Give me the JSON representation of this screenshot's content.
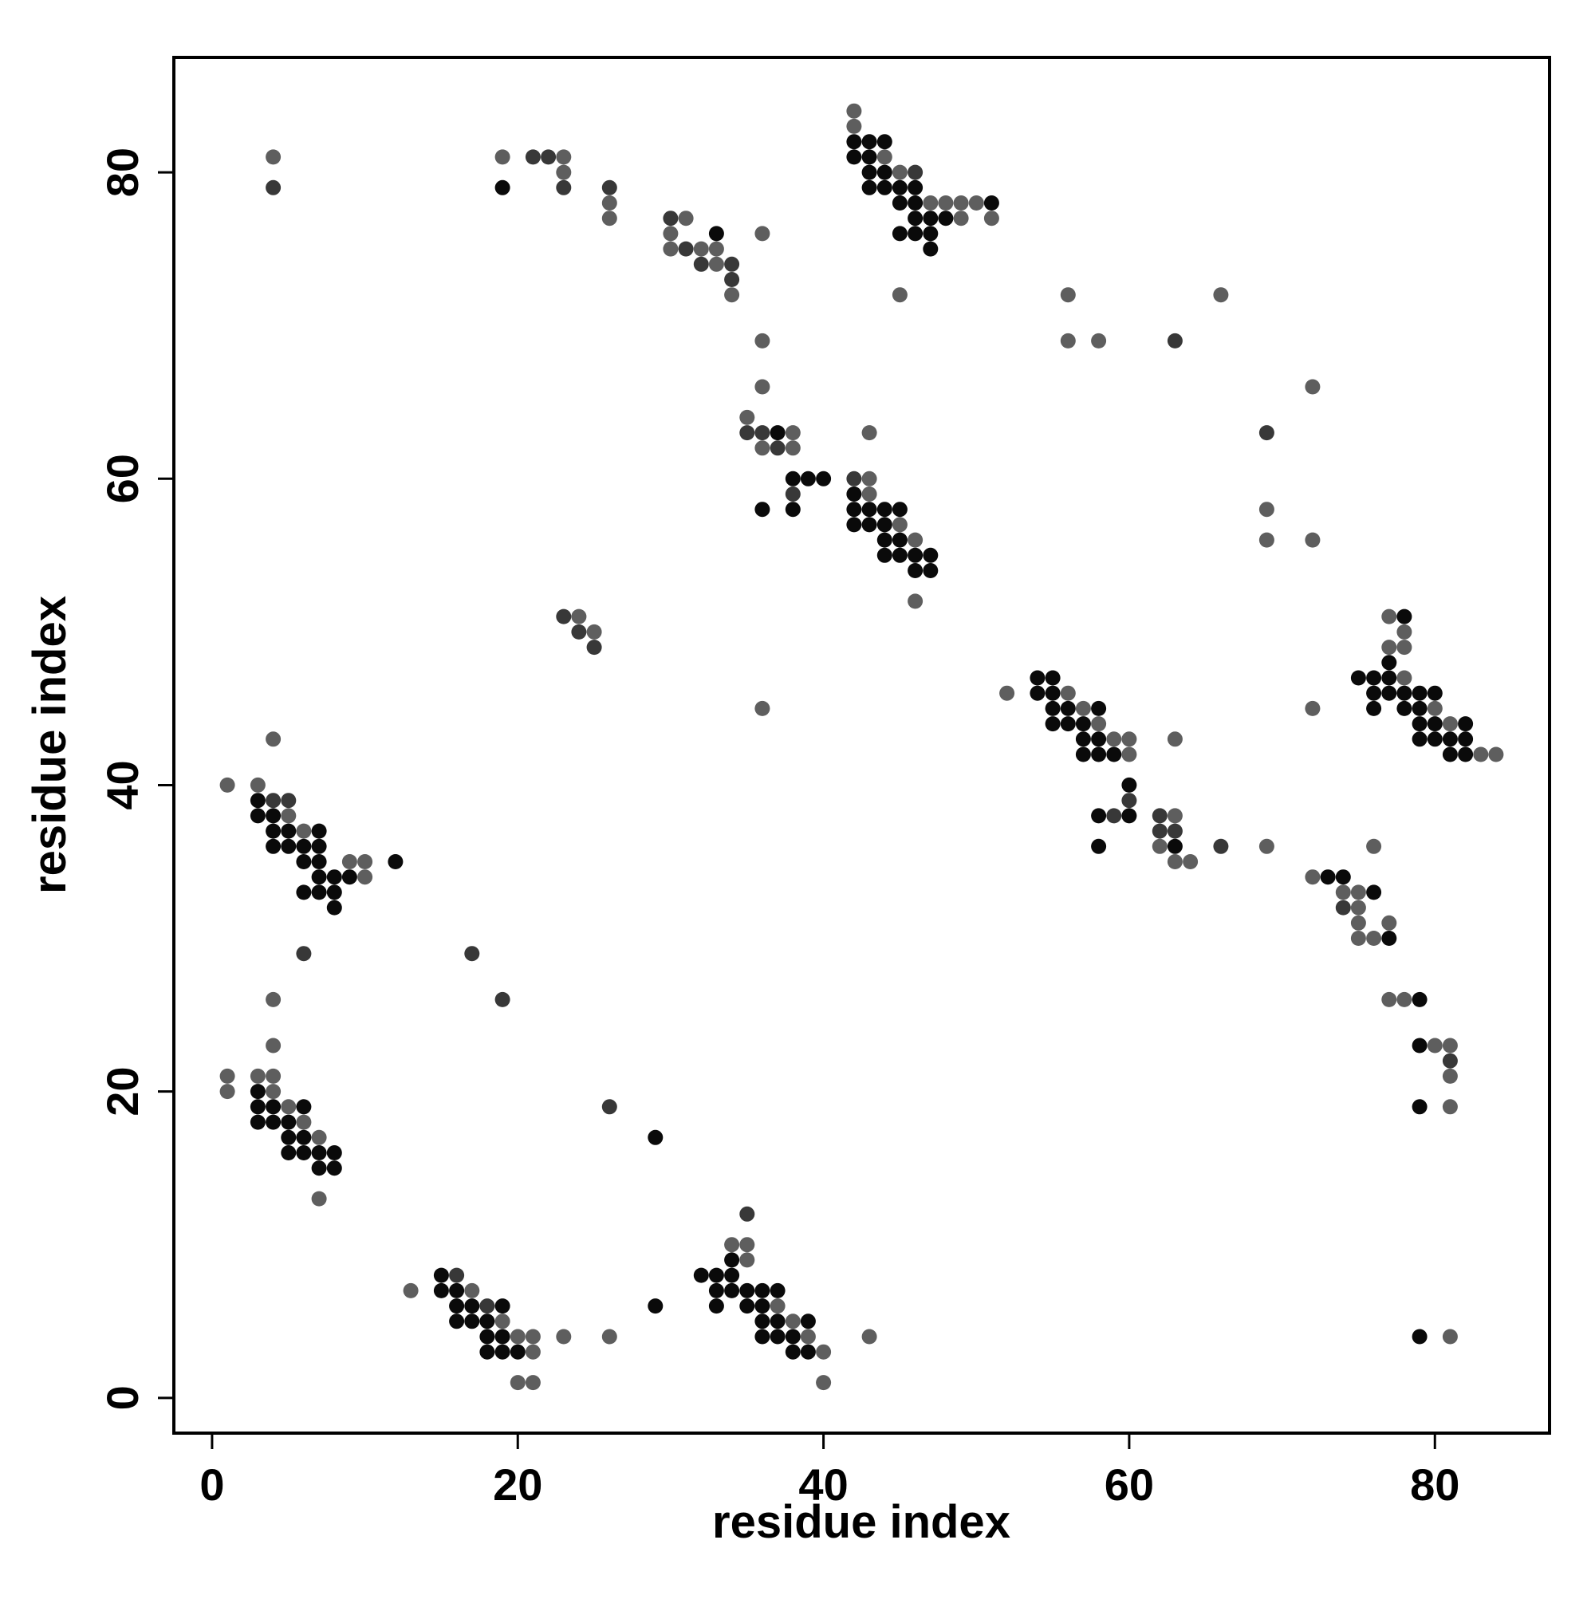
{
  "chart_data": {
    "type": "scatter",
    "title": "",
    "xlabel": "residue index",
    "ylabel": "residue index",
    "xlim": [
      -2.5,
      87.5
    ],
    "ylim": [
      -2.3,
      87.5
    ],
    "xticks": [
      0,
      20,
      40,
      60,
      80
    ],
    "yticks": [
      0,
      20,
      40,
      60,
      80
    ],
    "grid": false,
    "color_levels": {
      "1": "#0a0a0a",
      "2": "#383838",
      "3": "#5e5e5e"
    },
    "points": [
      [
        4,
        81,
        3
      ],
      [
        4,
        79,
        2
      ],
      [
        19,
        81,
        3
      ],
      [
        19,
        79,
        1
      ],
      [
        21,
        81,
        2
      ],
      [
        22,
        81,
        2
      ],
      [
        23,
        81,
        3
      ],
      [
        23,
        80,
        3
      ],
      [
        23,
        79,
        2
      ],
      [
        26,
        79,
        2
      ],
      [
        26,
        78,
        3
      ],
      [
        26,
        77,
        3
      ],
      [
        30,
        77,
        2
      ],
      [
        30,
        76,
        3
      ],
      [
        30,
        75,
        3
      ],
      [
        31,
        77,
        3
      ],
      [
        31,
        75,
        2
      ],
      [
        32,
        75,
        3
      ],
      [
        32,
        74,
        2
      ],
      [
        33,
        76,
        1
      ],
      [
        33,
        75,
        3
      ],
      [
        33,
        74,
        3
      ],
      [
        34,
        74,
        2
      ],
      [
        34,
        73,
        2
      ],
      [
        34,
        72,
        3
      ],
      [
        36,
        76,
        3
      ],
      [
        36,
        69,
        3
      ],
      [
        36,
        66,
        3
      ],
      [
        42,
        84,
        3
      ],
      [
        42,
        83,
        3
      ],
      [
        42,
        82,
        1
      ],
      [
        42,
        81,
        1
      ],
      [
        43,
        82,
        1
      ],
      [
        43,
        81,
        1
      ],
      [
        43,
        80,
        1
      ],
      [
        43,
        79,
        1
      ],
      [
        44,
        82,
        1
      ],
      [
        44,
        81,
        3
      ],
      [
        44,
        80,
        1
      ],
      [
        44,
        79,
        1
      ],
      [
        45,
        80,
        3
      ],
      [
        45,
        79,
        1
      ],
      [
        45,
        78,
        1
      ],
      [
        45,
        76,
        1
      ],
      [
        46,
        80,
        2
      ],
      [
        46,
        79,
        1
      ],
      [
        46,
        78,
        1
      ],
      [
        46,
        77,
        1
      ],
      [
        46,
        76,
        1
      ],
      [
        47,
        78,
        3
      ],
      [
        47,
        77,
        1
      ],
      [
        47,
        76,
        1
      ],
      [
        47,
        75,
        1
      ],
      [
        48,
        78,
        3
      ],
      [
        48,
        77,
        1
      ],
      [
        49,
        78,
        3
      ],
      [
        49,
        77,
        3
      ],
      [
        50,
        78,
        3
      ],
      [
        51,
        78,
        1
      ],
      [
        51,
        77,
        3
      ],
      [
        45,
        72,
        3
      ],
      [
        56,
        72,
        3
      ],
      [
        56,
        69,
        3
      ],
      [
        58,
        69,
        3
      ],
      [
        63,
        69,
        2
      ],
      [
        66,
        72,
        3
      ],
      [
        35,
        64,
        3
      ],
      [
        35,
        63,
        2
      ],
      [
        36,
        63,
        2
      ],
      [
        36,
        62,
        3
      ],
      [
        37,
        63,
        1
      ],
      [
        37,
        62,
        2
      ],
      [
        38,
        63,
        3
      ],
      [
        38,
        62,
        3
      ],
      [
        38,
        60,
        1
      ],
      [
        38,
        59,
        2
      ],
      [
        38,
        58,
        1
      ],
      [
        39,
        60,
        1
      ],
      [
        40,
        60,
        1
      ],
      [
        36,
        58,
        1
      ],
      [
        42,
        60,
        2
      ],
      [
        42,
        59,
        1
      ],
      [
        42,
        58,
        1
      ],
      [
        42,
        57,
        1
      ],
      [
        43,
        63,
        3
      ],
      [
        43,
        60,
        3
      ],
      [
        43,
        59,
        3
      ],
      [
        43,
        58,
        1
      ],
      [
        43,
        57,
        1
      ],
      [
        44,
        58,
        1
      ],
      [
        44,
        57,
        1
      ],
      [
        44,
        56,
        1
      ],
      [
        44,
        55,
        1
      ],
      [
        45,
        58,
        1
      ],
      [
        45,
        57,
        3
      ],
      [
        45,
        56,
        1
      ],
      [
        45,
        55,
        1
      ],
      [
        46,
        56,
        3
      ],
      [
        46,
        55,
        1
      ],
      [
        46,
        54,
        1
      ],
      [
        46,
        52,
        3
      ],
      [
        47,
        55,
        1
      ],
      [
        47,
        54,
        1
      ],
      [
        69,
        63,
        2
      ],
      [
        69,
        58,
        3
      ],
      [
        69,
        56,
        3
      ],
      [
        72,
        66,
        3
      ],
      [
        72,
        56,
        3
      ],
      [
        23,
        51,
        2
      ],
      [
        24,
        51,
        3
      ],
      [
        24,
        50,
        2
      ],
      [
        25,
        50,
        3
      ],
      [
        25,
        49,
        2
      ],
      [
        36,
        45,
        3
      ],
      [
        52,
        46,
        3
      ],
      [
        54,
        47,
        1
      ],
      [
        54,
        46,
        1
      ],
      [
        55,
        47,
        1
      ],
      [
        55,
        46,
        1
      ],
      [
        55,
        45,
        1
      ],
      [
        55,
        44,
        1
      ],
      [
        56,
        46,
        3
      ],
      [
        56,
        45,
        1
      ],
      [
        56,
        44,
        1
      ],
      [
        57,
        45,
        3
      ],
      [
        57,
        44,
        1
      ],
      [
        57,
        43,
        1
      ],
      [
        57,
        42,
        1
      ],
      [
        58,
        45,
        1
      ],
      [
        58,
        44,
        3
      ],
      [
        58,
        43,
        1
      ],
      [
        58,
        42,
        1
      ],
      [
        59,
        43,
        3
      ],
      [
        59,
        42,
        1
      ],
      [
        60,
        43,
        3
      ],
      [
        60,
        42,
        3
      ],
      [
        60,
        40,
        1
      ],
      [
        60,
        39,
        2
      ],
      [
        60,
        38,
        1
      ],
      [
        59,
        38,
        2
      ],
      [
        58,
        38,
        1
      ],
      [
        58,
        36,
        1
      ],
      [
        62,
        38,
        2
      ],
      [
        62,
        37,
        2
      ],
      [
        62,
        36,
        3
      ],
      [
        63,
        43,
        3
      ],
      [
        63,
        38,
        3
      ],
      [
        63,
        37,
        2
      ],
      [
        63,
        36,
        1
      ],
      [
        63,
        35,
        3
      ],
      [
        64,
        35,
        3
      ],
      [
        66,
        36,
        2
      ],
      [
        69,
        36,
        3
      ],
      [
        72,
        45,
        3
      ],
      [
        75,
        47,
        1
      ],
      [
        76,
        47,
        1
      ],
      [
        76,
        46,
        1
      ],
      [
        76,
        45,
        1
      ],
      [
        77,
        51,
        3
      ],
      [
        77,
        49,
        3
      ],
      [
        77,
        48,
        1
      ],
      [
        77,
        47,
        1
      ],
      [
        77,
        46,
        1
      ],
      [
        78,
        51,
        1
      ],
      [
        78,
        50,
        3
      ],
      [
        78,
        49,
        3
      ],
      [
        78,
        47,
        3
      ],
      [
        78,
        46,
        1
      ],
      [
        78,
        45,
        1
      ],
      [
        79,
        46,
        1
      ],
      [
        79,
        45,
        1
      ],
      [
        79,
        44,
        1
      ],
      [
        79,
        43,
        1
      ],
      [
        80,
        46,
        1
      ],
      [
        80,
        45,
        3
      ],
      [
        80,
        44,
        1
      ],
      [
        80,
        43,
        1
      ],
      [
        81,
        44,
        3
      ],
      [
        81,
        43,
        1
      ],
      [
        81,
        42,
        1
      ],
      [
        82,
        44,
        1
      ],
      [
        82,
        43,
        1
      ],
      [
        82,
        42,
        1
      ],
      [
        83,
        42,
        3
      ],
      [
        84,
        42,
        3
      ],
      [
        72,
        34,
        3
      ],
      [
        73,
        34,
        1
      ],
      [
        74,
        34,
        1
      ],
      [
        74,
        33,
        3
      ],
      [
        74,
        32,
        2
      ],
      [
        75,
        33,
        3
      ],
      [
        75,
        32,
        3
      ],
      [
        75,
        31,
        3
      ],
      [
        75,
        30,
        3
      ],
      [
        76,
        36,
        3
      ],
      [
        76,
        33,
        1
      ],
      [
        76,
        30,
        3
      ],
      [
        77,
        31,
        3
      ],
      [
        77,
        30,
        1
      ],
      [
        77,
        26,
        3
      ],
      [
        78,
        26,
        3
      ],
      [
        79,
        26,
        1
      ],
      [
        79,
        23,
        1
      ],
      [
        80,
        23,
        3
      ],
      [
        81,
        23,
        3
      ],
      [
        81,
        22,
        2
      ],
      [
        81,
        21,
        3
      ],
      [
        79,
        19,
        1
      ],
      [
        81,
        19,
        3
      ],
      [
        79,
        4,
        1
      ],
      [
        81,
        4,
        3
      ],
      [
        1,
        40,
        3
      ],
      [
        3,
        40,
        3
      ],
      [
        3,
        39,
        1
      ],
      [
        3,
        38,
        1
      ],
      [
        4,
        43,
        3
      ],
      [
        4,
        39,
        2
      ],
      [
        4,
        38,
        1
      ],
      [
        4,
        37,
        1
      ],
      [
        4,
        36,
        1
      ],
      [
        5,
        39,
        2
      ],
      [
        5,
        38,
        3
      ],
      [
        5,
        37,
        1
      ],
      [
        5,
        36,
        1
      ],
      [
        6,
        37,
        3
      ],
      [
        6,
        36,
        1
      ],
      [
        6,
        35,
        1
      ],
      [
        6,
        33,
        1
      ],
      [
        7,
        37,
        1
      ],
      [
        7,
        36,
        1
      ],
      [
        7,
        35,
        1
      ],
      [
        7,
        34,
        1
      ],
      [
        7,
        33,
        1
      ],
      [
        8,
        34,
        1
      ],
      [
        8,
        33,
        1
      ],
      [
        8,
        32,
        1
      ],
      [
        9,
        35,
        3
      ],
      [
        9,
        34,
        1
      ],
      [
        10,
        35,
        3
      ],
      [
        10,
        34,
        3
      ],
      [
        12,
        35,
        1
      ],
      [
        6,
        29,
        2
      ],
      [
        17,
        29,
        2
      ],
      [
        4,
        26,
        3
      ],
      [
        19,
        26,
        2
      ],
      [
        4,
        23,
        3
      ],
      [
        1,
        21,
        3
      ],
      [
        1,
        20,
        3
      ],
      [
        3,
        21,
        3
      ],
      [
        3,
        20,
        1
      ],
      [
        3,
        19,
        1
      ],
      [
        3,
        18,
        1
      ],
      [
        4,
        21,
        3
      ],
      [
        4,
        20,
        3
      ],
      [
        4,
        19,
        1
      ],
      [
        4,
        18,
        1
      ],
      [
        5,
        19,
        3
      ],
      [
        5,
        18,
        1
      ],
      [
        5,
        17,
        1
      ],
      [
        5,
        16,
        1
      ],
      [
        6,
        19,
        1
      ],
      [
        6,
        18,
        3
      ],
      [
        6,
        17,
        1
      ],
      [
        6,
        16,
        1
      ],
      [
        7,
        17,
        3
      ],
      [
        7,
        16,
        1
      ],
      [
        7,
        15,
        1
      ],
      [
        7,
        13,
        3
      ],
      [
        8,
        16,
        1
      ],
      [
        8,
        15,
        1
      ],
      [
        26,
        19,
        2
      ],
      [
        29,
        17,
        1
      ],
      [
        13,
        7,
        3
      ],
      [
        15,
        8,
        1
      ],
      [
        15,
        7,
        1
      ],
      [
        16,
        8,
        2
      ],
      [
        16,
        7,
        1
      ],
      [
        16,
        6,
        1
      ],
      [
        16,
        5,
        1
      ],
      [
        17,
        7,
        3
      ],
      [
        17,
        6,
        1
      ],
      [
        17,
        5,
        1
      ],
      [
        18,
        6,
        2
      ],
      [
        18,
        5,
        1
      ],
      [
        18,
        4,
        1
      ],
      [
        18,
        3,
        1
      ],
      [
        19,
        6,
        1
      ],
      [
        19,
        5,
        3
      ],
      [
        19,
        4,
        1
      ],
      [
        19,
        3,
        1
      ],
      [
        20,
        4,
        3
      ],
      [
        20,
        3,
        1
      ],
      [
        20,
        1,
        3
      ],
      [
        21,
        4,
        3
      ],
      [
        21,
        3,
        3
      ],
      [
        21,
        1,
        3
      ],
      [
        23,
        4,
        3
      ],
      [
        26,
        4,
        3
      ],
      [
        29,
        6,
        1
      ],
      [
        32,
        8,
        1
      ],
      [
        33,
        8,
        1
      ],
      [
        33,
        7,
        1
      ],
      [
        33,
        6,
        1
      ],
      [
        34,
        10,
        3
      ],
      [
        34,
        9,
        1
      ],
      [
        34,
        8,
        1
      ],
      [
        34,
        7,
        1
      ],
      [
        35,
        12,
        2
      ],
      [
        35,
        10,
        3
      ],
      [
        35,
        9,
        3
      ],
      [
        35,
        7,
        1
      ],
      [
        35,
        6,
        1
      ],
      [
        36,
        7,
        1
      ],
      [
        36,
        6,
        1
      ],
      [
        36,
        5,
        1
      ],
      [
        36,
        4,
        1
      ],
      [
        37,
        7,
        1
      ],
      [
        37,
        6,
        3
      ],
      [
        37,
        5,
        1
      ],
      [
        37,
        4,
        1
      ],
      [
        38,
        5,
        3
      ],
      [
        38,
        4,
        1
      ],
      [
        38,
        3,
        1
      ],
      [
        39,
        5,
        1
      ],
      [
        39,
        4,
        3
      ],
      [
        39,
        3,
        1
      ],
      [
        40,
        3,
        3
      ],
      [
        40,
        1,
        3
      ],
      [
        43,
        4,
        3
      ]
    ]
  }
}
